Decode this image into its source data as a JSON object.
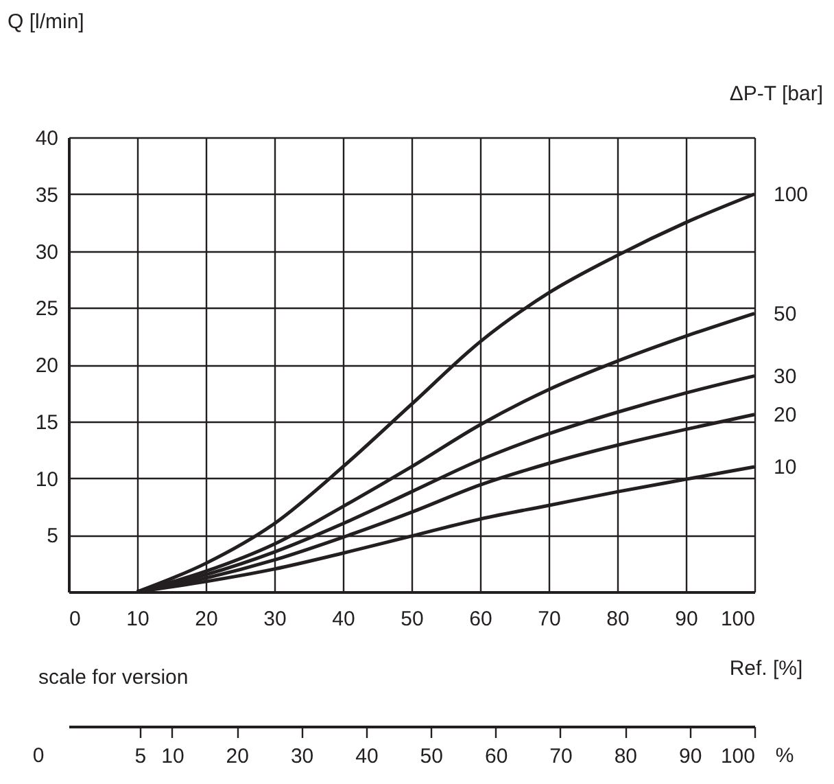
{
  "chart_data": {
    "type": "line",
    "ylabel": "Q [l/min]",
    "xlabel": "Ref. [%]",
    "legend_title": "ΔP-T [bar]",
    "x2label": "scale for version",
    "x": [
      10,
      20,
      30,
      40,
      50,
      60,
      70,
      80,
      90,
      100
    ],
    "series": [
      {
        "name": "100",
        "color": "#231f20",
        "values": [
          0,
          2.5,
          6,
          11,
          16.5,
          22,
          26.3,
          29.6,
          32.5,
          35
        ]
      },
      {
        "name": "50",
        "color": "#231f20",
        "values": [
          0,
          1.8,
          4.2,
          7.5,
          11,
          14.7,
          17.8,
          20.3,
          22.5,
          24.5
        ]
      },
      {
        "name": "30",
        "color": "#231f20",
        "values": [
          0,
          1.5,
          3.5,
          6,
          8.8,
          11.6,
          13.9,
          15.8,
          17.5,
          19
        ]
      },
      {
        "name": "20",
        "color": "#231f20",
        "values": [
          0,
          1.2,
          2.8,
          4.8,
          7,
          9.4,
          11.3,
          12.9,
          14.3,
          15.6
        ]
      },
      {
        "name": "10",
        "color": "#231f20",
        "values": [
          0,
          0.9,
          2,
          3.4,
          4.9,
          6.4,
          7.6,
          8.8,
          9.9,
          11
        ]
      }
    ],
    "xlim": [
      0,
      100
    ],
    "xticks": [
      0,
      10,
      20,
      30,
      40,
      50,
      60,
      70,
      80,
      90,
      100
    ],
    "ylim": [
      0,
      40
    ],
    "yticks": [
      5,
      10,
      15,
      20,
      25,
      30,
      35,
      40
    ],
    "x2lim": [
      -6,
      100
    ],
    "x2ticks": [
      5,
      10,
      20,
      30,
      40,
      50,
      60,
      70,
      80,
      90,
      100
    ],
    "annotations": [
      "0",
      "%"
    ],
    "grid": true,
    "legend": false,
    "marker": "none",
    "line_style": "solid"
  }
}
